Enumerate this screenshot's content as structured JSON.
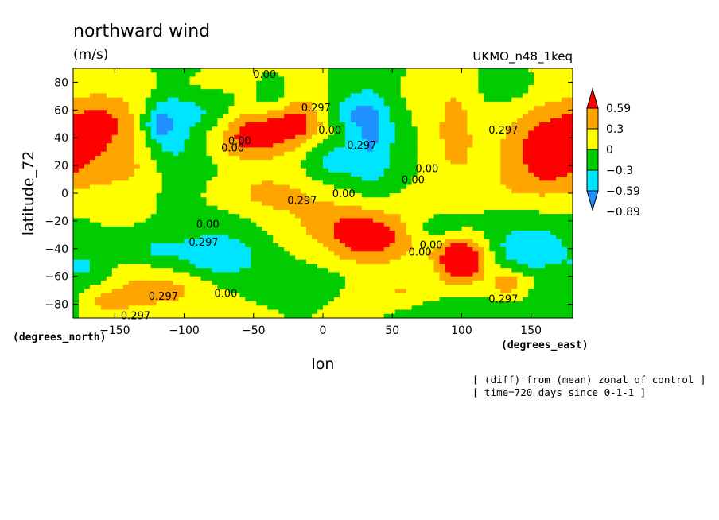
{
  "chart_data": {
    "type": "heatmap",
    "title": "northward wind",
    "units": "(m/s)",
    "model_label": "UKMO_n48_1keq",
    "xlabel": "lon",
    "ylabel": "latitude_72",
    "x_unit_label": "(degrees_east)",
    "y_unit_label": "(degrees_north)",
    "xlim": [
      -180,
      180
    ],
    "ylim": [
      -90,
      90
    ],
    "x_ticks": [
      -150,
      -100,
      -50,
      0,
      50,
      100,
      150
    ],
    "y_ticks": [
      -80,
      -60,
      -40,
      -20,
      0,
      20,
      40,
      60,
      80
    ],
    "colorbar": {
      "levels": [
        -0.89,
        -0.59,
        -0.3,
        0,
        0.3,
        0.59
      ],
      "labels": [
        "-0.89",
        "-0.59",
        "-0.3",
        "0",
        "0.3",
        "0.59"
      ],
      "colors": [
        "#1e90ff",
        "#00e5ff",
        "#00cc00",
        "#ffff00",
        "#ffa500",
        "#ff0000"
      ],
      "extend": "both"
    },
    "contour_labels": [
      {
        "text": "0.00",
        "lon": -42,
        "lat": 86
      },
      {
        "text": "0.297",
        "lon": -5,
        "lat": 62
      },
      {
        "text": "0.00",
        "lon": -60,
        "lat": 38
      },
      {
        "text": "0.00",
        "lon": -65,
        "lat": 33
      },
      {
        "text": "0.00",
        "lon": 5,
        "lat": 46
      },
      {
        "text": "0.297",
        "lon": 28,
        "lat": 35
      },
      {
        "text": "0.00",
        "lon": 65,
        "lat": 10
      },
      {
        "text": "0.00",
        "lon": 75,
        "lat": 18
      },
      {
        "text": "0.297",
        "lon": 130,
        "lat": 46
      },
      {
        "text": "0.297",
        "lon": -15,
        "lat": -5
      },
      {
        "text": "0.00",
        "lon": 15,
        "lat": 0
      },
      {
        "text": "0.00",
        "lon": -83,
        "lat": -22
      },
      {
        "text": "0.297",
        "lon": -86,
        "lat": -35
      },
      {
        "text": "0.00",
        "lon": 78,
        "lat": -37
      },
      {
        "text": "0.00",
        "lon": 70,
        "lat": -42
      },
      {
        "text": "0.297",
        "lon": -115,
        "lat": -74
      },
      {
        "text": "0.00",
        "lon": -70,
        "lat": -72
      },
      {
        "text": "0.297",
        "lon": -135,
        "lat": -88
      },
      {
        "text": "0.297",
        "lon": 130,
        "lat": -76
      }
    ],
    "blobs": [
      {
        "lon": -150,
        "lat": 48,
        "rx": 40,
        "ry": 32,
        "v": 0.33
      },
      {
        "lon": -160,
        "lat": 50,
        "rx": 20,
        "ry": 16,
        "v": 0.25
      },
      {
        "lon": -110,
        "lat": 48,
        "rx": 18,
        "ry": 30,
        "v": -0.55
      },
      {
        "lon": -120,
        "lat": 50,
        "rx": 10,
        "ry": 12,
        "v": -0.45
      },
      {
        "lon": -82,
        "lat": 58,
        "rx": 20,
        "ry": 14,
        "v": -0.3
      },
      {
        "lon": -55,
        "lat": 40,
        "rx": 24,
        "ry": 18,
        "v": 0.58
      },
      {
        "lon": -18,
        "lat": 52,
        "rx": 24,
        "ry": 18,
        "v": 0.62
      },
      {
        "lon": -35,
        "lat": 45,
        "rx": 30,
        "ry": 22,
        "v": 0.2
      },
      {
        "lon": -40,
        "lat": 5,
        "rx": 50,
        "ry": 12,
        "v": 0.25
      },
      {
        "lon": -35,
        "lat": 66,
        "rx": 14,
        "ry": 12,
        "v": -0.35
      },
      {
        "lon": 18,
        "lat": 58,
        "rx": 22,
        "ry": 12,
        "v": -0.4
      },
      {
        "lon": 35,
        "lat": 40,
        "rx": 18,
        "ry": 40,
        "v": -0.6
      },
      {
        "lon": 5,
        "lat": 22,
        "rx": 18,
        "ry": 18,
        "v": -0.4
      },
      {
        "lon": 95,
        "lat": 42,
        "rx": 16,
        "ry": 35,
        "v": 0.4
      },
      {
        "lon": 80,
        "lat": 70,
        "rx": 40,
        "ry": 16,
        "v": 0.1
      },
      {
        "lon": 130,
        "lat": 75,
        "rx": 25,
        "ry": 12,
        "v": -0.2
      },
      {
        "lon": 165,
        "lat": 35,
        "rx": 35,
        "ry": 30,
        "v": 0.7
      },
      {
        "lon": 150,
        "lat": 20,
        "rx": 40,
        "ry": 18,
        "v": 0.15
      },
      {
        "lon": 150,
        "lat": 5,
        "rx": 35,
        "ry": 10,
        "v": 0.18
      },
      {
        "lon": -40,
        "lat": -8,
        "rx": 40,
        "ry": 12,
        "v": 0.2
      },
      {
        "lon": 15,
        "lat": -22,
        "rx": 40,
        "ry": 18,
        "v": 0.28
      },
      {
        "lon": 35,
        "lat": -35,
        "rx": 30,
        "ry": 18,
        "v": 0.62
      },
      {
        "lon": 25,
        "lat": -20,
        "rx": 55,
        "ry": 20,
        "v": 0.15
      },
      {
        "lon": -120,
        "lat": -18,
        "rx": 30,
        "ry": 8,
        "v": 0.1
      },
      {
        "lon": -90,
        "lat": -20,
        "rx": 40,
        "ry": 8,
        "v": -0.2
      },
      {
        "lon": -75,
        "lat": -44,
        "rx": 30,
        "ry": 16,
        "v": -0.58
      },
      {
        "lon": -120,
        "lat": -40,
        "rx": 20,
        "ry": 10,
        "v": -0.3
      },
      {
        "lon": 100,
        "lat": -48,
        "rx": 18,
        "ry": 16,
        "v": 1.1
      },
      {
        "lon": 85,
        "lat": -25,
        "rx": 25,
        "ry": 10,
        "v": -0.25
      },
      {
        "lon": 150,
        "lat": -40,
        "rx": 30,
        "ry": 18,
        "v": -0.55
      },
      {
        "lon": -120,
        "lat": -70,
        "rx": 35,
        "ry": 14,
        "v": 0.45
      },
      {
        "lon": -155,
        "lat": -78,
        "rx": 20,
        "ry": 8,
        "v": 0.35
      },
      {
        "lon": 55,
        "lat": -70,
        "rx": 25,
        "ry": 10,
        "v": 0.3
      },
      {
        "lon": 135,
        "lat": -65,
        "rx": 15,
        "ry": 10,
        "v": 0.5
      },
      {
        "lon": 100,
        "lat": -85,
        "rx": 30,
        "ry": 8,
        "v": -0.3
      },
      {
        "lon": 165,
        "lat": -75,
        "rx": 20,
        "ry": 10,
        "v": -0.3
      },
      {
        "lon": -170,
        "lat": -55,
        "rx": 15,
        "ry": 12,
        "v": -0.3
      },
      {
        "lon": -20,
        "lat": -60,
        "rx": 40,
        "ry": 10,
        "v": -0.15
      },
      {
        "lon": -140,
        "lat": 15,
        "rx": 30,
        "ry": 15,
        "v": 0.22
      },
      {
        "lon": -90,
        "lat": 10,
        "rx": 30,
        "ry": 25,
        "v": -0.15
      },
      {
        "lon": -100,
        "lat": 78,
        "rx": 40,
        "ry": 8,
        "v": 0.1
      }
    ]
  },
  "footer": {
    "line1": "[ (diff) from (mean) zonal of control ]",
    "line2": "[ time=720 days since 0-1-1 ]"
  }
}
